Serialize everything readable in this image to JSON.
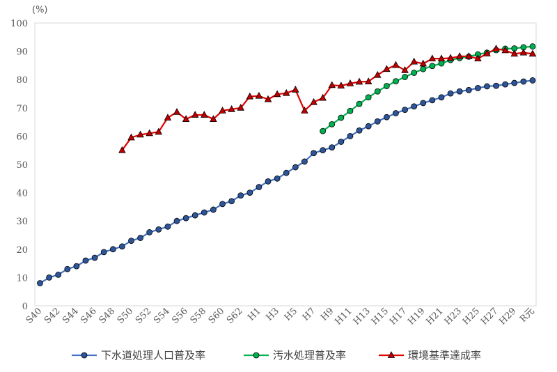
{
  "chart_data": {
    "type": "line",
    "unit_label": "(%)",
    "xlabel": "",
    "ylabel": "",
    "ylim": [
      0,
      100
    ],
    "y_ticks": [
      "0",
      "10",
      "20",
      "30",
      "40",
      "50",
      "60",
      "70",
      "80",
      "90",
      "100"
    ],
    "grid": false,
    "legend_position": "bottom",
    "categories": [
      "S40",
      "S41",
      "S42",
      "S43",
      "S44",
      "S45",
      "S46",
      "S47",
      "S48",
      "S49",
      "S50",
      "S51",
      "S52",
      "S53",
      "S54",
      "S55",
      "S56",
      "S57",
      "S58",
      "S59",
      "S60",
      "S61",
      "S62",
      "S63",
      "H1",
      "H2",
      "H3",
      "H4",
      "H5",
      "H6",
      "H7",
      "H8",
      "H9",
      "H10",
      "H11",
      "H12",
      "H13",
      "H14",
      "H15",
      "H16",
      "H17",
      "H18",
      "H19",
      "H20",
      "H21",
      "H22",
      "H23",
      "H24",
      "H25",
      "H26",
      "H27",
      "H28",
      "H29",
      "H30",
      "R元"
    ],
    "x_tick_labels": [
      "S40",
      "S42",
      "S44",
      "S46",
      "S48",
      "S50",
      "S52",
      "S54",
      "S56",
      "S58",
      "S60",
      "S62",
      "H1",
      "H3",
      "H5",
      "H7",
      "H9",
      "H11",
      "H13",
      "H15",
      "H17",
      "H19",
      "H21",
      "H23",
      "H25",
      "H27",
      "H29",
      "R元"
    ],
    "series": [
      {
        "name": "下水道処理人口普及率",
        "color": "#4472c4",
        "marker": "circle",
        "marker_fill": "#2e5597",
        "values": [
          8,
          10,
          11,
          13,
          14,
          16,
          17,
          19,
          20,
          21,
          23,
          24,
          26,
          27,
          28,
          30,
          31,
          32,
          33,
          34,
          36,
          37,
          39,
          40,
          42,
          44,
          45,
          47,
          49,
          51,
          54,
          55,
          56,
          58,
          60,
          62,
          63.5,
          65.2,
          66.7,
          68.1,
          69.3,
          70.5,
          71.7,
          72.7,
          73.7,
          75.1,
          75.8,
          76.3,
          77.0,
          77.6,
          77.8,
          78.3,
          78.8,
          79.3,
          79.7
        ]
      },
      {
        "name": "汚水処理普及率",
        "color": "#00b050",
        "marker": "circle",
        "marker_fill": "#00b050",
        "values": [
          null,
          null,
          null,
          null,
          null,
          null,
          null,
          null,
          null,
          null,
          null,
          null,
          null,
          null,
          null,
          null,
          null,
          null,
          null,
          null,
          null,
          null,
          null,
          null,
          null,
          null,
          null,
          null,
          null,
          null,
          null,
          61.8,
          64.2,
          66.5,
          68.9,
          71.4,
          73.7,
          75.8,
          77.7,
          79.4,
          80.9,
          82.4,
          83.7,
          84.8,
          85.7,
          86.9,
          87.6,
          88.1,
          88.9,
          89.5,
          90.4,
          90.9,
          91.0,
          91.4,
          91.7
        ]
      },
      {
        "name": "環境基準達成率",
        "color": "#e00000",
        "marker": "triangle",
        "marker_fill": "#c00000",
        "values": [
          null,
          null,
          null,
          null,
          null,
          null,
          null,
          null,
          null,
          55,
          59.5,
          60.5,
          61,
          61.5,
          66.5,
          68.5,
          66,
          67.5,
          67.5,
          66,
          69,
          69.5,
          70,
          74,
          74.2,
          73,
          74.8,
          75.2,
          76.4,
          69,
          72,
          73.5,
          78,
          77.8,
          78.6,
          79.2,
          79.3,
          81.6,
          83.7,
          85.1,
          83.3,
          86.3,
          85.6,
          87.4,
          87.4,
          87.6,
          88.2,
          88.2,
          87.4,
          89.2,
          90.9,
          90.3,
          89.1,
          89.5,
          89.1
        ]
      }
    ]
  }
}
